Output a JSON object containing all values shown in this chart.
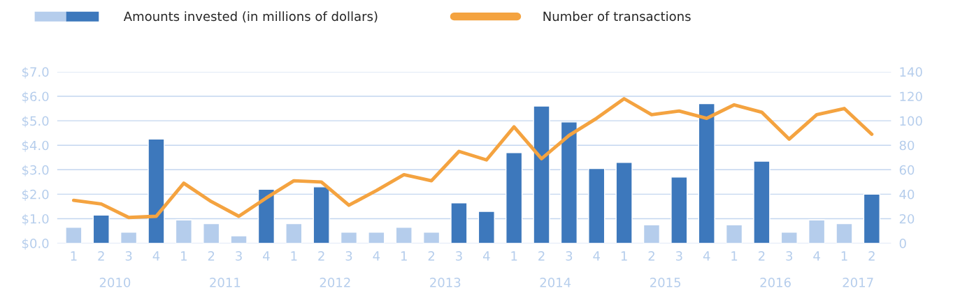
{
  "chart_data": {
    "type": "bar",
    "categories": [
      "1",
      "2",
      "3",
      "4",
      "1",
      "2",
      "3",
      "4",
      "1",
      "2",
      "3",
      "4",
      "1",
      "2",
      "3",
      "4",
      "1",
      "2",
      "3",
      "4",
      "1",
      "2",
      "3",
      "4",
      "1",
      "2",
      "3",
      "4",
      "1",
      "2"
    ],
    "series": [
      {
        "name": "Amounts invested (in millions of dollars)",
        "colors": [
          "#b5cdec",
          "#3d78bc",
          "#b5cdec",
          "#3d78bc",
          "#b5cdec",
          "#b5cdec",
          "#b5cdec",
          "#3d78bc",
          "#b5cdec",
          "#3d78bc",
          "#b5cdec",
          "#b5cdec",
          "#b5cdec",
          "#b5cdec",
          "#3d78bc",
          "#3d78bc",
          "#3d78bc",
          "#3d78bc",
          "#3d78bc",
          "#3d78bc",
          "#3d78bc",
          "#b5cdec",
          "#3d78bc",
          "#3d78bc",
          "#b5cdec",
          "#3d78bc",
          "#b5cdec",
          "#b5cdec",
          "#b5cdec",
          "#3d78bc"
        ],
        "values": [
          0.65,
          1.15,
          0.45,
          4.25,
          0.95,
          0.8,
          0.3,
          2.2,
          0.8,
          2.3,
          0.45,
          0.45,
          0.65,
          0.45,
          1.65,
          1.3,
          3.7,
          5.6,
          4.95,
          3.05,
          3.3,
          0.75,
          2.7,
          5.7,
          0.75,
          3.35,
          0.45,
          0.95,
          0.8,
          2.0
        ]
      },
      {
        "name": "Number of transactions",
        "type": "line",
        "axis": "y2",
        "color": "#f4a340",
        "values": [
          35,
          32,
          21,
          22,
          49,
          34,
          22,
          37,
          51,
          50,
          31,
          43,
          56,
          51,
          75,
          68,
          95,
          69,
          88,
          102,
          118,
          105,
          108,
          102,
          113,
          107,
          85,
          105,
          110,
          89
        ]
      }
    ],
    "ylim": [
      0,
      7
    ],
    "yticks": [
      {
        "value": 0,
        "label": "$0.0"
      },
      {
        "value": 1,
        "label": "$1.0"
      },
      {
        "value": 2,
        "label": "$2.0"
      },
      {
        "value": 3,
        "label": "$3.0"
      },
      {
        "value": 4,
        "label": "$4.0"
      },
      {
        "value": 5,
        "label": "$5.0"
      },
      {
        "value": 6,
        "label": "$6.0"
      },
      {
        "value": 7,
        "label": "$7.0"
      }
    ],
    "y2lim": [
      0,
      140
    ],
    "y2ticks": [
      0,
      20,
      40,
      60,
      80,
      100,
      120,
      140
    ],
    "annotations": [
      "2010",
      "2011",
      "2012",
      "2013",
      "2014",
      "2015",
      "2016",
      "2017"
    ],
    "grid": "y",
    "legend": "top left",
    "marker": "none",
    "line_style": "solid"
  }
}
